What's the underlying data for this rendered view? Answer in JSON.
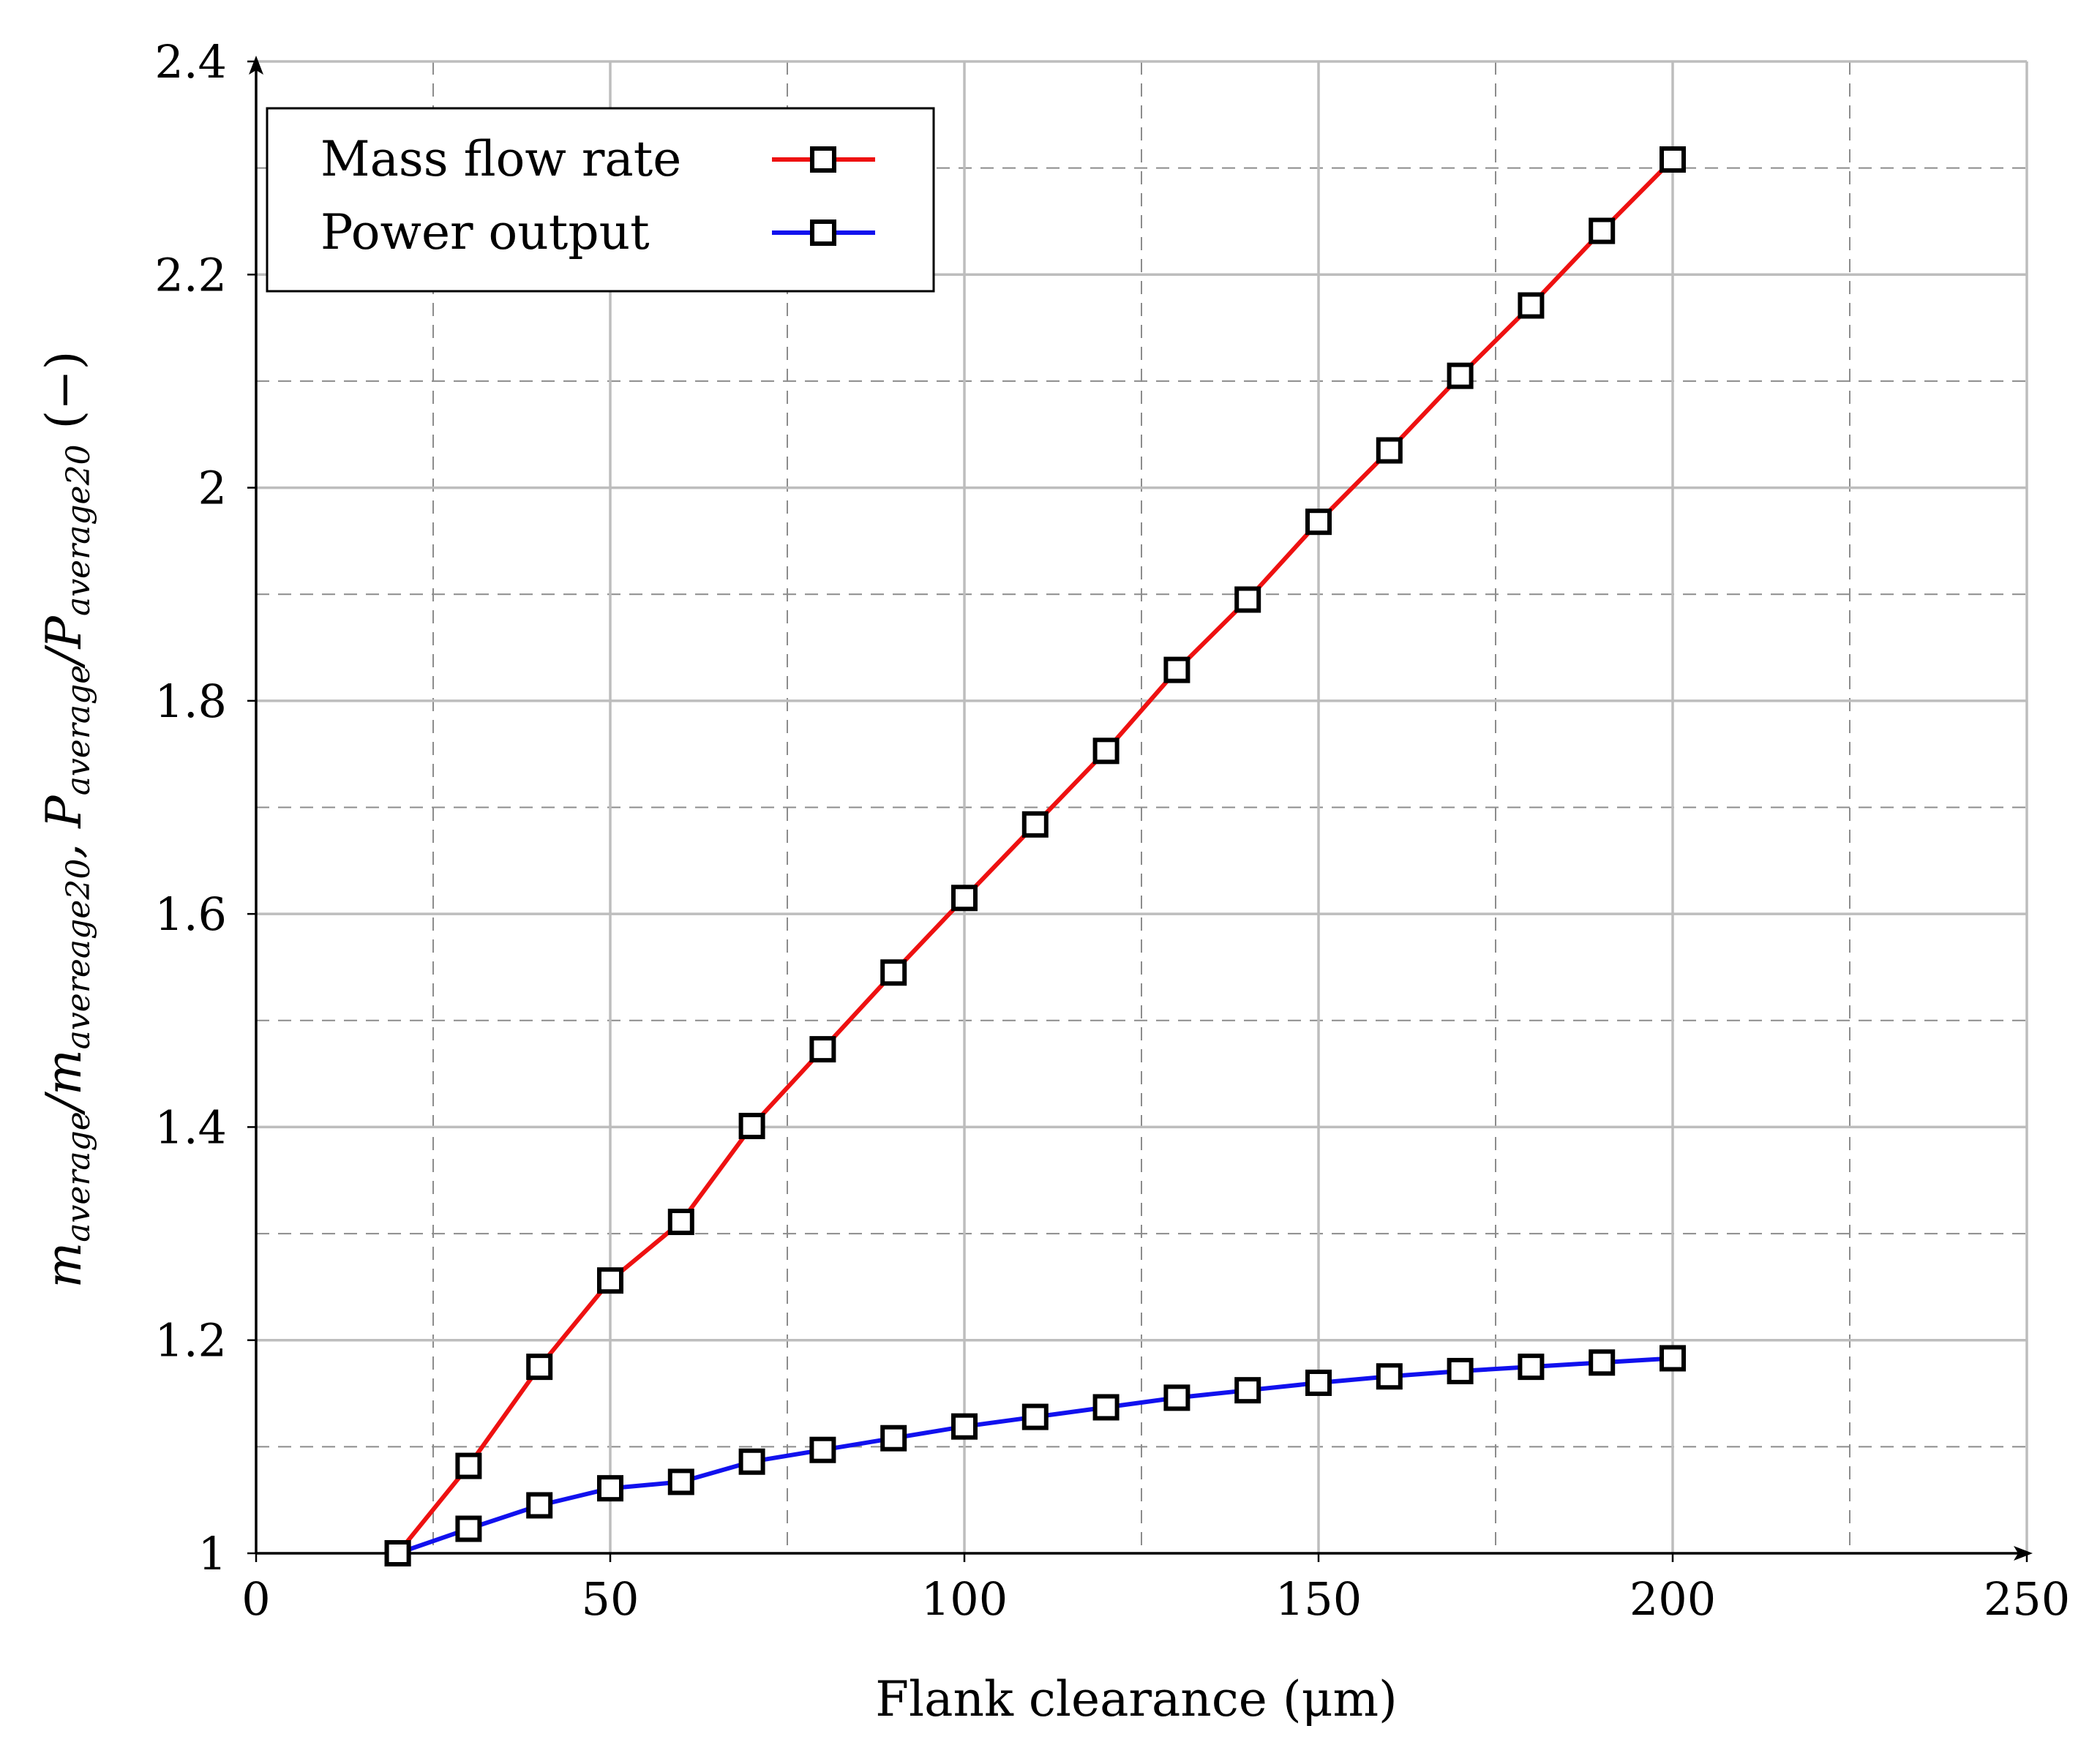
{
  "chart_data": {
    "type": "line",
    "xlabel": "Flank clearance (μm)",
    "ylabel": "maverage/mavereage20, Paverage/Paverage20 (−)",
    "ylabel_parts": {
      "p1": "m",
      "s1": "average",
      "p2": "/m",
      "s2": "avereage20",
      "p3": ", P",
      "s3": "average",
      "p4": "/P",
      "s4": "average20",
      "p5": " (−)"
    },
    "xlim": [
      0,
      250
    ],
    "ylim": [
      1,
      2.4
    ],
    "xticks": [
      0,
      50,
      100,
      150,
      200,
      250
    ],
    "xtick_labels": [
      "0",
      "50",
      "100",
      "150",
      "200",
      "250"
    ],
    "yticks": [
      1,
      1.2,
      1.4,
      1.6,
      1.8,
      2,
      2.2,
      2.4
    ],
    "ytick_labels": [
      "1",
      "1.2",
      "1.4",
      "1.6",
      "1.8",
      "2",
      "2.2",
      "2.4"
    ],
    "minor_xgrid": [
      25,
      75,
      125,
      175,
      225
    ],
    "minor_ygrid": [
      1.1,
      1.3,
      1.5,
      1.7,
      1.9,
      2.1,
      2.3
    ],
    "grid": true,
    "legend_position": "top-left",
    "x": [
      20,
      30,
      40,
      50,
      60,
      70,
      80,
      90,
      100,
      110,
      120,
      130,
      140,
      150,
      160,
      170,
      180,
      190,
      200
    ],
    "series": [
      {
        "name": "Mass flow rate",
        "color": "#ee1111",
        "marker": "square",
        "values": [
          1.0,
          1.082,
          1.175,
          1.256,
          1.311,
          1.401,
          1.473,
          1.545,
          1.615,
          1.684,
          1.753,
          1.829,
          1.895,
          1.968,
          2.035,
          2.105,
          2.171,
          2.241,
          2.308
        ]
      },
      {
        "name": "Power output",
        "color": "#1111ee",
        "marker": "square",
        "values": [
          1.0,
          1.023,
          1.045,
          1.061,
          1.067,
          1.086,
          1.097,
          1.108,
          1.119,
          1.128,
          1.137,
          1.146,
          1.153,
          1.16,
          1.166,
          1.171,
          1.175,
          1.179,
          1.183
        ]
      }
    ]
  }
}
